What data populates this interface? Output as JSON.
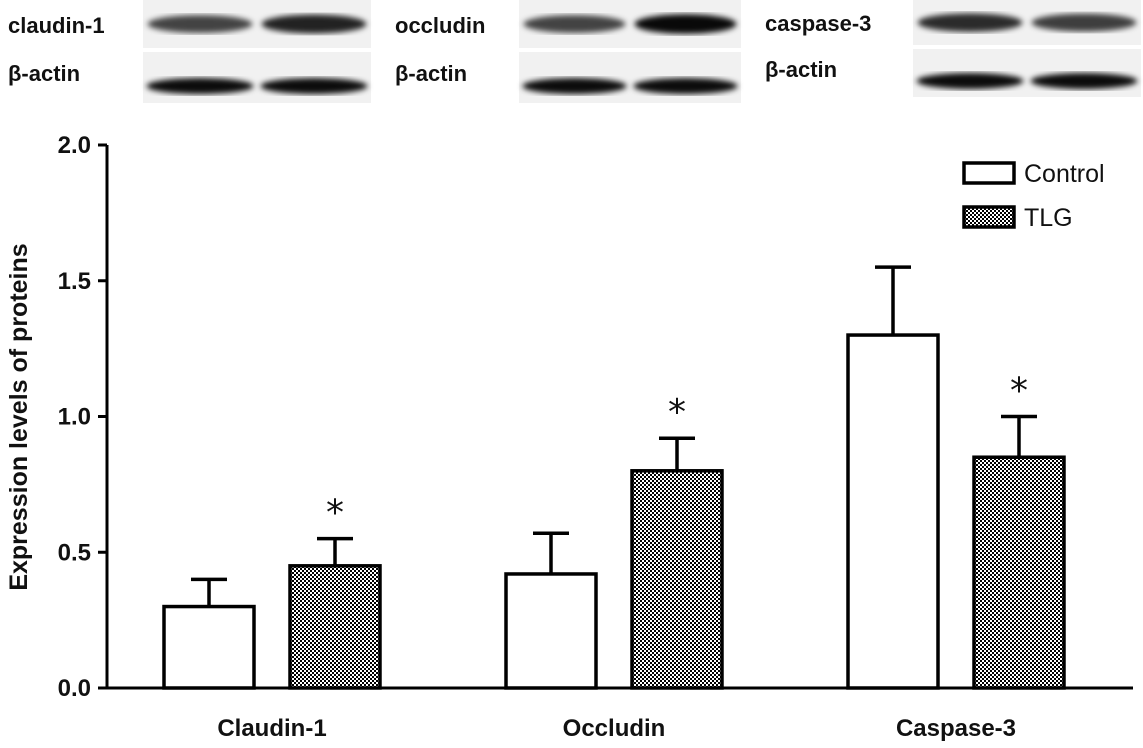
{
  "blots": [
    {
      "protein_label": "claudin-1",
      "actin_label": "β-actin",
      "protein_intensity": [
        0.72,
        0.86
      ],
      "actin_intensity": [
        0.95,
        0.95
      ]
    },
    {
      "protein_label": "occludin",
      "actin_label": "β-actin",
      "protein_intensity": [
        0.72,
        0.96
      ],
      "actin_intensity": [
        0.95,
        0.95
      ]
    },
    {
      "protein_label": "caspase-3",
      "actin_label": "β-actin",
      "protein_intensity": [
        0.82,
        0.74
      ],
      "actin_intensity": [
        0.95,
        0.95
      ]
    }
  ],
  "colors": {
    "control_fill": "#ffffff",
    "tlg_pattern": "checkerboard",
    "bar_stroke": "#000000"
  },
  "chart_data": {
    "type": "bar",
    "title": "",
    "xlabel": "",
    "ylabel": "Expression levels of proteins",
    "ylim": [
      0,
      2.0
    ],
    "yticks": [
      "0.0",
      "0.5",
      "1.0",
      "1.5",
      "2.0"
    ],
    "ytick_values": [
      0,
      0.5,
      1.0,
      1.5,
      2.0
    ],
    "categories": [
      "Claudin-1",
      "Occludin",
      "Caspase-3"
    ],
    "series": [
      {
        "name": "Control",
        "values": [
          0.3,
          0.42,
          1.3
        ],
        "errors": [
          0.1,
          0.15,
          0.25
        ],
        "significant": [
          false,
          false,
          false
        ]
      },
      {
        "name": "TLG",
        "values": [
          0.45,
          0.8,
          0.85
        ],
        "errors": [
          0.1,
          0.12,
          0.15
        ],
        "significant": [
          true,
          true,
          true
        ]
      }
    ],
    "significance_marker": "*",
    "legend_position": "top-right",
    "grid": false
  }
}
